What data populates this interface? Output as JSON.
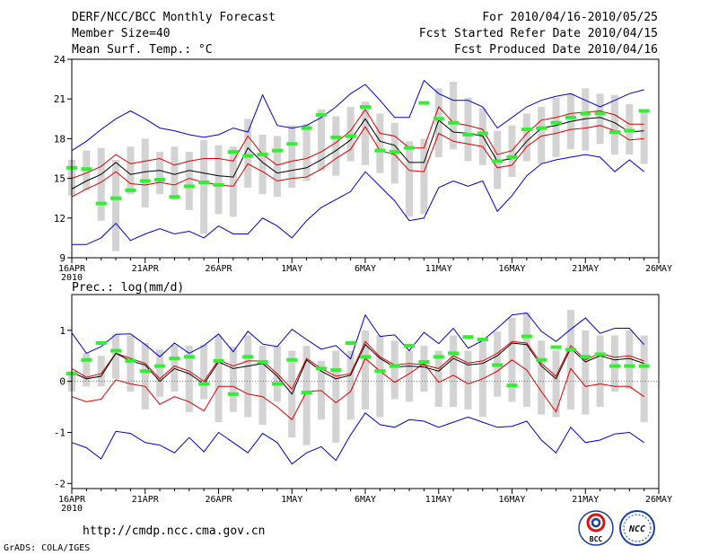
{
  "header": {
    "title": "DERF/NCC/BCC Monthly Forecast",
    "member_size": "Member Size=40",
    "variable": "Mean Surf. Temp.: °C",
    "forecast_period": "For 2010/04/16-2010/05/25",
    "started_refer": "Fcst Started Refer Date 2010/04/15",
    "produced": "Fcst Produced Date 2010/04/16"
  },
  "footer": {
    "url": "http://cmdp.ncc.cma.gov.cn",
    "credit": "GrADS: COLA/IGES",
    "logo_bcc_text": "BCC",
    "logo_ncc_text": "NCC"
  },
  "colors": {
    "envelope": "#0000cc",
    "spread": "#dd0000",
    "mean": "#000000",
    "box": "#d3d3d3",
    "obs": "#33ee33"
  },
  "chart_data": [
    {
      "type": "line",
      "title": "Mean Surf. Temp.: °C",
      "ylabel": "°C",
      "ylim": [
        9,
        24
      ],
      "yticks": [
        9,
        12,
        15,
        18,
        21,
        24
      ],
      "xlim": [
        1,
        41
      ],
      "xtick_days": [
        1,
        6,
        11,
        16,
        21,
        26,
        31,
        36,
        41
      ],
      "xtick_labels": [
        "16APR",
        "21APR",
        "26APR",
        "1MAY",
        "6MAY",
        "11MAY",
        "16MAY",
        "21MAY",
        "26MAY"
      ],
      "year_label": "2010",
      "x": [
        1,
        2,
        3,
        4,
        5,
        6,
        7,
        8,
        9,
        10,
        11,
        12,
        13,
        14,
        15,
        16,
        17,
        18,
        19,
        20,
        21,
        22,
        23,
        24,
        25,
        26,
        27,
        28,
        29,
        30,
        31,
        32,
        33,
        34,
        35,
        36,
        37,
        38,
        39,
        40
      ],
      "series": [
        {
          "name": "Ensemble max",
          "values": [
            17.1,
            17.8,
            18.7,
            19.5,
            20.1,
            19.5,
            18.8,
            18.6,
            18.3,
            18.1,
            18.3,
            18.8,
            18.5,
            21.3,
            19.0,
            18.8,
            19.0,
            19.6,
            20.4,
            21.4,
            22.1,
            20.9,
            19.6,
            19.6,
            22.4,
            21.4,
            20.9,
            20.9,
            20.4,
            18.8,
            19.6,
            20.4,
            20.9,
            21.2,
            21.4,
            20.9,
            20.4,
            20.9,
            21.4,
            21.7
          ]
        },
        {
          "name": "Ensemble min",
          "values": [
            10.0,
            10.0,
            10.5,
            11.6,
            10.3,
            10.8,
            11.2,
            10.8,
            11.0,
            10.5,
            11.4,
            10.8,
            10.8,
            12.0,
            11.4,
            10.5,
            11.8,
            12.8,
            13.4,
            14.0,
            15.5,
            14.4,
            13.3,
            11.8,
            12.0,
            14.3,
            14.8,
            14.4,
            14.8,
            12.5,
            13.7,
            15.2,
            16.1,
            16.4,
            16.6,
            16.8,
            16.6,
            15.5,
            16.4,
            15.5
          ]
        },
        {
          "name": "Mean + spread",
          "values": [
            15.0,
            15.4,
            15.9,
            16.8,
            16.1,
            16.3,
            16.5,
            16.0,
            16.3,
            16.5,
            16.5,
            16.3,
            18.2,
            16.8,
            16.0,
            16.3,
            16.5,
            17.0,
            17.7,
            18.6,
            20.2,
            18.4,
            18.2,
            17.3,
            17.3,
            20.4,
            19.2,
            19.0,
            18.7,
            16.8,
            17.1,
            18.4,
            19.4,
            19.6,
            19.9,
            20.0,
            20.1,
            19.8,
            19.1,
            19.1
          ]
        },
        {
          "name": "Ensemble mean",
          "values": [
            14.2,
            14.8,
            15.3,
            16.2,
            15.3,
            15.5,
            15.6,
            15.3,
            15.6,
            15.4,
            15.2,
            15.1,
            17.3,
            16.2,
            15.4,
            15.6,
            15.8,
            16.4,
            17.1,
            17.9,
            19.5,
            17.8,
            17.5,
            16.2,
            16.2,
            19.4,
            18.5,
            18.4,
            18.2,
            16.3,
            16.5,
            17.8,
            18.8,
            19.0,
            19.3,
            19.5,
            19.6,
            19.2,
            18.5,
            18.6
          ]
        },
        {
          "name": "Mean - spread",
          "values": [
            13.6,
            14.2,
            14.7,
            15.5,
            14.6,
            14.5,
            14.7,
            14.5,
            15.0,
            14.7,
            14.5,
            14.4,
            16.1,
            15.5,
            14.8,
            15.0,
            15.1,
            15.7,
            16.5,
            17.2,
            18.9,
            17.1,
            16.8,
            15.6,
            15.5,
            18.4,
            17.8,
            17.6,
            17.4,
            15.8,
            16.0,
            17.4,
            18.2,
            18.4,
            18.7,
            18.8,
            19.0,
            18.6,
            17.9,
            18.0
          ]
        },
        {
          "name": "Box top",
          "values": [
            16.4,
            17.1,
            17.3,
            16.4,
            17.4,
            18.0,
            17.0,
            17.4,
            17.0,
            17.9,
            17.5,
            17.4,
            19.5,
            18.3,
            18.2,
            19.0,
            19.1,
            20.2,
            19.7,
            20.4,
            20.8,
            19.9,
            19.2,
            17.8,
            18.0,
            21.8,
            22.3,
            21.1,
            20.3,
            18.6,
            19.0,
            19.9,
            20.4,
            21.1,
            21.4,
            21.8,
            21.4,
            21.3,
            20.6,
            20.2
          ]
        },
        {
          "name": "Box bottom",
          "values": [
            13.7,
            14.1,
            11.8,
            9.5,
            13.8,
            12.8,
            13.8,
            13.4,
            12.6,
            10.8,
            12.3,
            12.1,
            14.3,
            13.8,
            13.6,
            14.3,
            14.8,
            15.6,
            15.2,
            16.3,
            16.0,
            15.4,
            14.6,
            12.1,
            12.3,
            16.6,
            17.2,
            16.3,
            16.0,
            14.2,
            15.1,
            16.3,
            16.1,
            16.6,
            17.2,
            17.1,
            17.6,
            16.8,
            16.8,
            16.1
          ]
        },
        {
          "name": "Observed",
          "values": [
            15.8,
            15.7,
            13.1,
            13.5,
            14.1,
            14.8,
            14.9,
            13.6,
            14.4,
            14.7,
            14.5,
            17.0,
            16.7,
            16.8,
            17.1,
            17.6,
            18.8,
            19.8,
            18.1,
            18.2,
            20.4,
            17.1,
            17.0,
            17.3,
            20.7,
            19.5,
            19.2,
            18.3,
            18.4,
            16.3,
            16.6,
            18.7,
            18.8,
            19.2,
            19.6,
            19.9,
            19.9,
            18.5,
            18.6,
            20.1
          ]
        }
      ]
    },
    {
      "type": "line",
      "title": "Prec.: log(mm/d)",
      "ylabel": "log(mm/d)",
      "ylim": [
        -2.1,
        1.7
      ],
      "yticks": [
        -2,
        -1,
        0,
        1
      ],
      "xlim": [
        1,
        41
      ],
      "xtick_days": [
        1,
        6,
        11,
        16,
        21,
        26,
        31,
        36,
        41
      ],
      "xtick_labels": [
        "16APR",
        "21APR",
        "26APR",
        "1MAY",
        "6MAY",
        "11MAY",
        "16MAY",
        "21MAY",
        "26MAY"
      ],
      "year_label": "2010",
      "x": [
        1,
        2,
        3,
        4,
        5,
        6,
        7,
        8,
        9,
        10,
        11,
        12,
        13,
        14,
        15,
        16,
        17,
        18,
        19,
        20,
        21,
        22,
        23,
        24,
        25,
        26,
        27,
        28,
        29,
        30,
        31,
        32,
        33,
        34,
        35,
        36,
        37,
        38,
        39,
        40
      ],
      "series": [
        {
          "name": "Ensemble max",
          "values": [
            0.95,
            0.55,
            0.68,
            0.92,
            0.93,
            0.72,
            0.48,
            0.75,
            0.55,
            0.7,
            0.93,
            0.58,
            0.98,
            0.73,
            0.68,
            1.02,
            0.82,
            0.63,
            0.7,
            0.44,
            1.3,
            0.88,
            0.91,
            0.6,
            0.96,
            0.74,
            1.04,
            0.65,
            0.8,
            1.04,
            1.3,
            1.34,
            0.98,
            0.78,
            1.02,
            1.24,
            0.94,
            1.04,
            1.04,
            0.72
          ]
        },
        {
          "name": "Ensemble min",
          "values": [
            -1.2,
            -1.3,
            -1.52,
            -0.98,
            -1.02,
            -1.2,
            -1.25,
            -1.4,
            -1.1,
            -1.38,
            -1.0,
            -1.2,
            -1.4,
            -1.02,
            -1.2,
            -1.62,
            -1.4,
            -1.28,
            -1.55,
            -1.05,
            -0.62,
            -0.85,
            -0.9,
            -0.75,
            -0.78,
            -0.9,
            -0.8,
            -0.7,
            -0.8,
            -0.9,
            -0.88,
            -0.78,
            -1.15,
            -1.4,
            -0.9,
            -1.2,
            -1.15,
            -1.03,
            -1.0,
            -1.2
          ]
        },
        {
          "name": "Mean + spread",
          "values": [
            -0.3,
            -0.4,
            -0.35,
            0.03,
            -0.05,
            -0.1,
            -0.45,
            -0.3,
            -0.4,
            -0.58,
            -0.1,
            -0.1,
            -0.25,
            -0.3,
            -0.5,
            -0.75,
            -0.2,
            -0.18,
            -0.42,
            -0.2,
            0.45,
            0.2,
            -0.02,
            0.15,
            0.35,
            -0.02,
            0.12,
            -0.05,
            0.05,
            0.2,
            0.42,
            0.22,
            -0.2,
            -0.6,
            0.25,
            -0.1,
            -0.05,
            -0.1,
            -0.1,
            -0.3
          ]
        },
        {
          "name": "Ensemble mean",
          "values": [
            0.18,
            0.05,
            0.1,
            0.55,
            0.4,
            0.32,
            0.0,
            0.25,
            0.15,
            -0.05,
            0.38,
            0.25,
            0.3,
            0.35,
            0.1,
            -0.25,
            0.42,
            0.2,
            0.05,
            0.12,
            0.72,
            0.45,
            0.28,
            0.3,
            0.28,
            0.2,
            0.45,
            0.32,
            0.35,
            0.5,
            0.75,
            0.72,
            0.3,
            0.05,
            0.65,
            0.38,
            0.5,
            0.42,
            0.45,
            0.35
          ]
        },
        {
          "name": "Mean - spread",
          "values": [
            0.25,
            0.08,
            0.15,
            0.55,
            0.45,
            0.35,
            0.05,
            0.3,
            0.2,
            0.0,
            0.42,
            0.3,
            0.4,
            0.4,
            0.15,
            -0.15,
            0.45,
            0.25,
            0.1,
            0.15,
            0.78,
            0.48,
            0.32,
            0.35,
            0.32,
            0.25,
            0.5,
            0.36,
            0.4,
            0.55,
            0.78,
            0.75,
            0.35,
            0.1,
            0.7,
            0.42,
            0.55,
            0.47,
            0.5,
            0.4
          ]
        },
        {
          "name": "Box top",
          "values": [
            0.2,
            0.55,
            0.5,
            0.92,
            0.9,
            0.75,
            0.62,
            0.72,
            0.7,
            0.72,
            0.9,
            0.68,
            0.9,
            0.7,
            0.7,
            0.6,
            0.7,
            0.4,
            0.6,
            0.6,
            1.0,
            0.9,
            0.8,
            0.6,
            0.7,
            0.6,
            0.9,
            0.6,
            0.8,
            0.98,
            1.25,
            1.35,
            0.8,
            0.6,
            1.4,
            1.0,
            0.9,
            0.9,
            1.0,
            0.9
          ]
        },
        {
          "name": "Box bottom",
          "values": [
            -0.2,
            -0.1,
            -0.1,
            0.05,
            -0.2,
            -0.55,
            -0.3,
            -0.2,
            -0.6,
            -0.35,
            -0.8,
            -0.6,
            -0.7,
            -0.85,
            -0.4,
            -1.1,
            -1.25,
            -0.75,
            -1.2,
            -0.75,
            -0.55,
            -0.7,
            -0.35,
            -0.4,
            -0.2,
            -0.5,
            -0.5,
            -0.55,
            -0.7,
            -0.3,
            -0.4,
            -0.5,
            -0.65,
            -0.7,
            -0.55,
            -0.65,
            -0.5,
            -0.2,
            -0.15,
            -0.8
          ]
        },
        {
          "name": "Observed",
          "values": [
            0.15,
            0.42,
            0.75,
            0.6,
            0.4,
            0.2,
            0.3,
            0.45,
            0.48,
            -0.05,
            0.4,
            -0.25,
            0.48,
            0.38,
            -0.05,
            0.42,
            -0.22,
            0.25,
            0.22,
            0.75,
            0.48,
            0.2,
            0.3,
            0.7,
            0.38,
            0.48,
            0.55,
            0.87,
            0.82,
            0.32,
            -0.08,
            0.88,
            0.42,
            0.67,
            0.62,
            0.48,
            0.53,
            0.3,
            0.3,
            0.3
          ]
        }
      ]
    }
  ]
}
